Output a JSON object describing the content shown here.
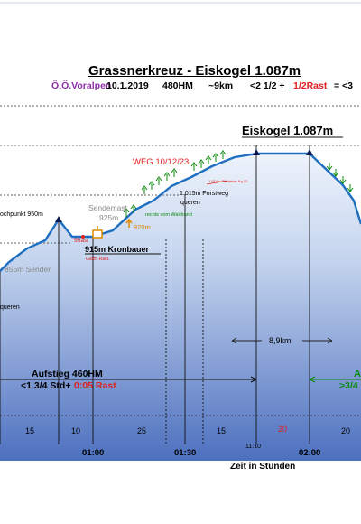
{
  "colors": {
    "background_top": "#ffffff",
    "fill_top": "#dbe6f5",
    "fill_bottom": "#4f72c0",
    "profile_line": "#1f6fc0",
    "red": "#e02020",
    "green": "#0a8a0a",
    "purple": "#8b2fa6",
    "gray": "#8a8a8a"
  },
  "header": {
    "title": "Grassnerkreuz - Eiskogel 1.087m",
    "region": "Ö.Ö.Voralpen",
    "date": "10.1.2019",
    "elevation_gain": "480HM",
    "distance_approx": "~9km",
    "time_part1": "<2 1/2 +",
    "time_rest": "1/2Rast",
    "time_equals": "= <3"
  },
  "labels": {
    "eiskogel": "Eiskogel 1.087m",
    "weg": "WEG 10/12/23",
    "hochpunkt": "ochpunkt 950m",
    "sendemast": "Sendemast",
    "sendemast_height": "925m",
    "rast5": "5Rast",
    "gasthaus": "Gasth.Rast.",
    "kronbauer": "915m Kronbauer",
    "sender855": "855m Sender",
    "queren_left": "queren",
    "h920": "920m",
    "rechts_waldrand": "rechts vom Waldrand",
    "forstweg_alt": "1.015m Forstweg",
    "forstweg_queren": "queren",
    "tiny_note": "1.074m Pferdekar Kg.22",
    "distance": "8,9km",
    "aufstieg_title": "Aufstieg 460HM",
    "aufstieg_time": "<1 3/4 Std+",
    "aufstieg_rest": "0:05 Rast",
    "descent_letter": "A",
    "descent_time": ">3/4",
    "axis_title": "Zeit in Stunden"
  },
  "segments": [
    "15",
    "10",
    "25",
    "15",
    "20",
    "20"
  ],
  "time_ticks": [
    "01:00",
    "01:30",
    "02:00"
  ],
  "time_tick_small": "11:10"
}
